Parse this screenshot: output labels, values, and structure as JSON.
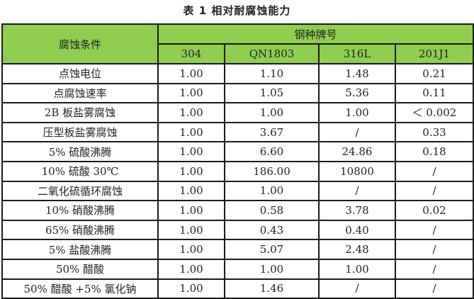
{
  "title": "表 1   相对耐腐蚀能力",
  "header": {
    "condition_label": "腐蚀条件",
    "group_label": "钢种牌号",
    "grades": [
      "304",
      "QN1803",
      "316L",
      "201J1"
    ]
  },
  "header_color": "#8fce4f",
  "rows": [
    {
      "condition": "点蚀电位",
      "values": [
        "1.00",
        "1.10",
        "1.48",
        "0.21"
      ]
    },
    {
      "condition": "点腐蚀速率",
      "values": [
        "1.00",
        "1.05",
        "5.36",
        "0.11"
      ]
    },
    {
      "condition": "2B 板盐雾腐蚀",
      "values": [
        "1.00",
        "1.00",
        "1.00",
        "＜ 0.002"
      ]
    },
    {
      "condition": "压型板盐雾腐蚀",
      "values": [
        "1.00",
        "3.67",
        "/",
        "0.33"
      ]
    },
    {
      "condition": "5% 硫酸沸腾",
      "values": [
        "1.00",
        "6.60",
        "24.86",
        "0.18"
      ]
    },
    {
      "condition": "10% 硫酸 30℃",
      "values": [
        "1.00",
        "186.00",
        "10800",
        "/"
      ]
    },
    {
      "condition": "二氧化硫循环腐蚀",
      "values": [
        "1.00",
        "1.00",
        "/",
        "/"
      ]
    },
    {
      "condition": "10% 硝酸沸腾",
      "values": [
        "1.00",
        "0.58",
        "3.78",
        "0.02"
      ]
    },
    {
      "condition": "65% 硝酸沸腾",
      "values": [
        "1.00",
        "0.43",
        "0.40",
        "/"
      ]
    },
    {
      "condition": "5% 盐酸沸腾",
      "values": [
        "1.00",
        "5.07",
        "2.48",
        "/"
      ]
    },
    {
      "condition": "50% 醋酸",
      "values": [
        "1.00",
        "1.00",
        "1.00",
        "/"
      ]
    },
    {
      "condition": "50% 醋酸 +5% 氯化钠",
      "values": [
        "1.00",
        "1.46",
        "/",
        "/"
      ]
    }
  ]
}
